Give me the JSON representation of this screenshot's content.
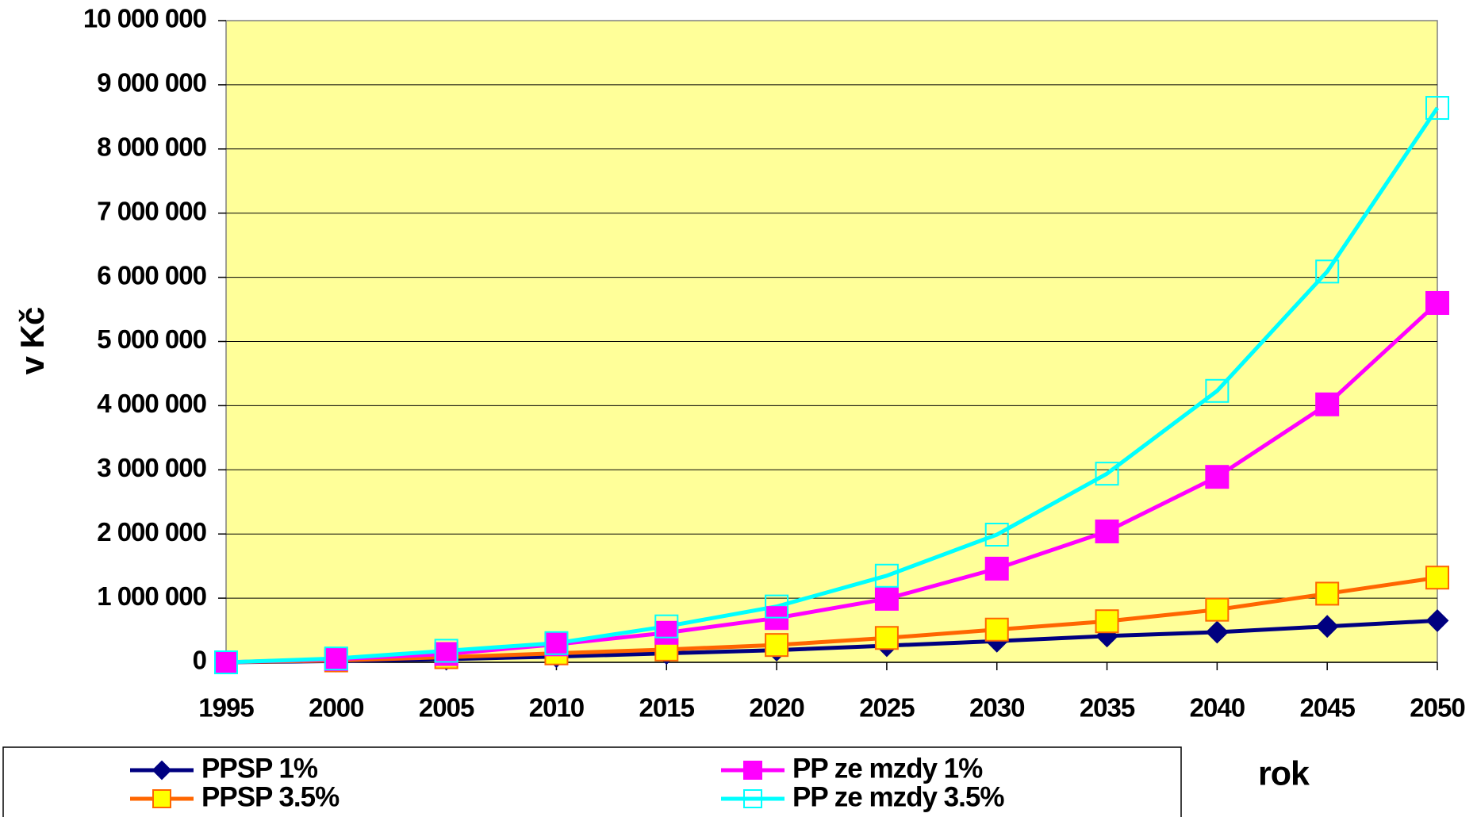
{
  "chart_data": {
    "type": "line",
    "y_label": "v Kč",
    "x_label": "rok",
    "x": [
      1995,
      2000,
      2005,
      2010,
      2015,
      2020,
      2025,
      2030,
      2035,
      2040,
      2045,
      2050
    ],
    "xlim": [
      1995,
      2050
    ],
    "xticks": [
      1995,
      2000,
      2005,
      2010,
      2015,
      2020,
      2025,
      2030,
      2035,
      2040,
      2045,
      2050
    ],
    "ylim": [
      0,
      10000000
    ],
    "yticks": [
      0,
      {
        "value": 1000000,
        "label": "1 000 000"
      },
      {
        "value": 2000000,
        "label": "2 000 000"
      },
      {
        "value": 3000000,
        "label": "3 000 000"
      },
      {
        "value": 4000000,
        "label": "4 000 000"
      },
      {
        "value": 5000000,
        "label": "5 000 000"
      },
      {
        "value": 6000000,
        "label": "6 000 000"
      },
      {
        "value": 7000000,
        "label": "7 000 000"
      },
      {
        "value": 8000000,
        "label": "8 000 000"
      },
      {
        "value": 9000000,
        "label": "9 000 000"
      },
      {
        "value": 10000000,
        "label": "10 000 000"
      }
    ],
    "grid": true,
    "plot_background": "#ffff99",
    "series": [
      {
        "name": "PPSP 1%",
        "color": "#000080",
        "marker": "diamond",
        "marker_fill": "#000080",
        "values": [
          0,
          20000,
          50000,
          90000,
          140000,
          190000,
          260000,
          330000,
          410000,
          470000,
          560000,
          650000
        ]
      },
      {
        "name": "PPSP 3.5%",
        "color": "#ff6600",
        "marker": "square",
        "marker_fill": "#ffff00",
        "values": [
          0,
          30000,
          80000,
          140000,
          200000,
          270000,
          380000,
          510000,
          640000,
          820000,
          1070000,
          1320000
        ]
      },
      {
        "name": "PP ze mzdy 1%",
        "color": "#ff00ff",
        "marker": "square",
        "marker_fill": "#ff00ff",
        "values": [
          0,
          50000,
          130000,
          280000,
          460000,
          690000,
          990000,
          1460000,
          2040000,
          2890000,
          4020000,
          5600000
        ]
      },
      {
        "name": "PP ze mzdy 3.5%",
        "color": "#00ffff",
        "marker": "square",
        "marker_fill": "none",
        "values": [
          0,
          60000,
          180000,
          300000,
          560000,
          870000,
          1350000,
          1990000,
          2940000,
          4230000,
          6090000,
          8640000
        ]
      }
    ]
  }
}
